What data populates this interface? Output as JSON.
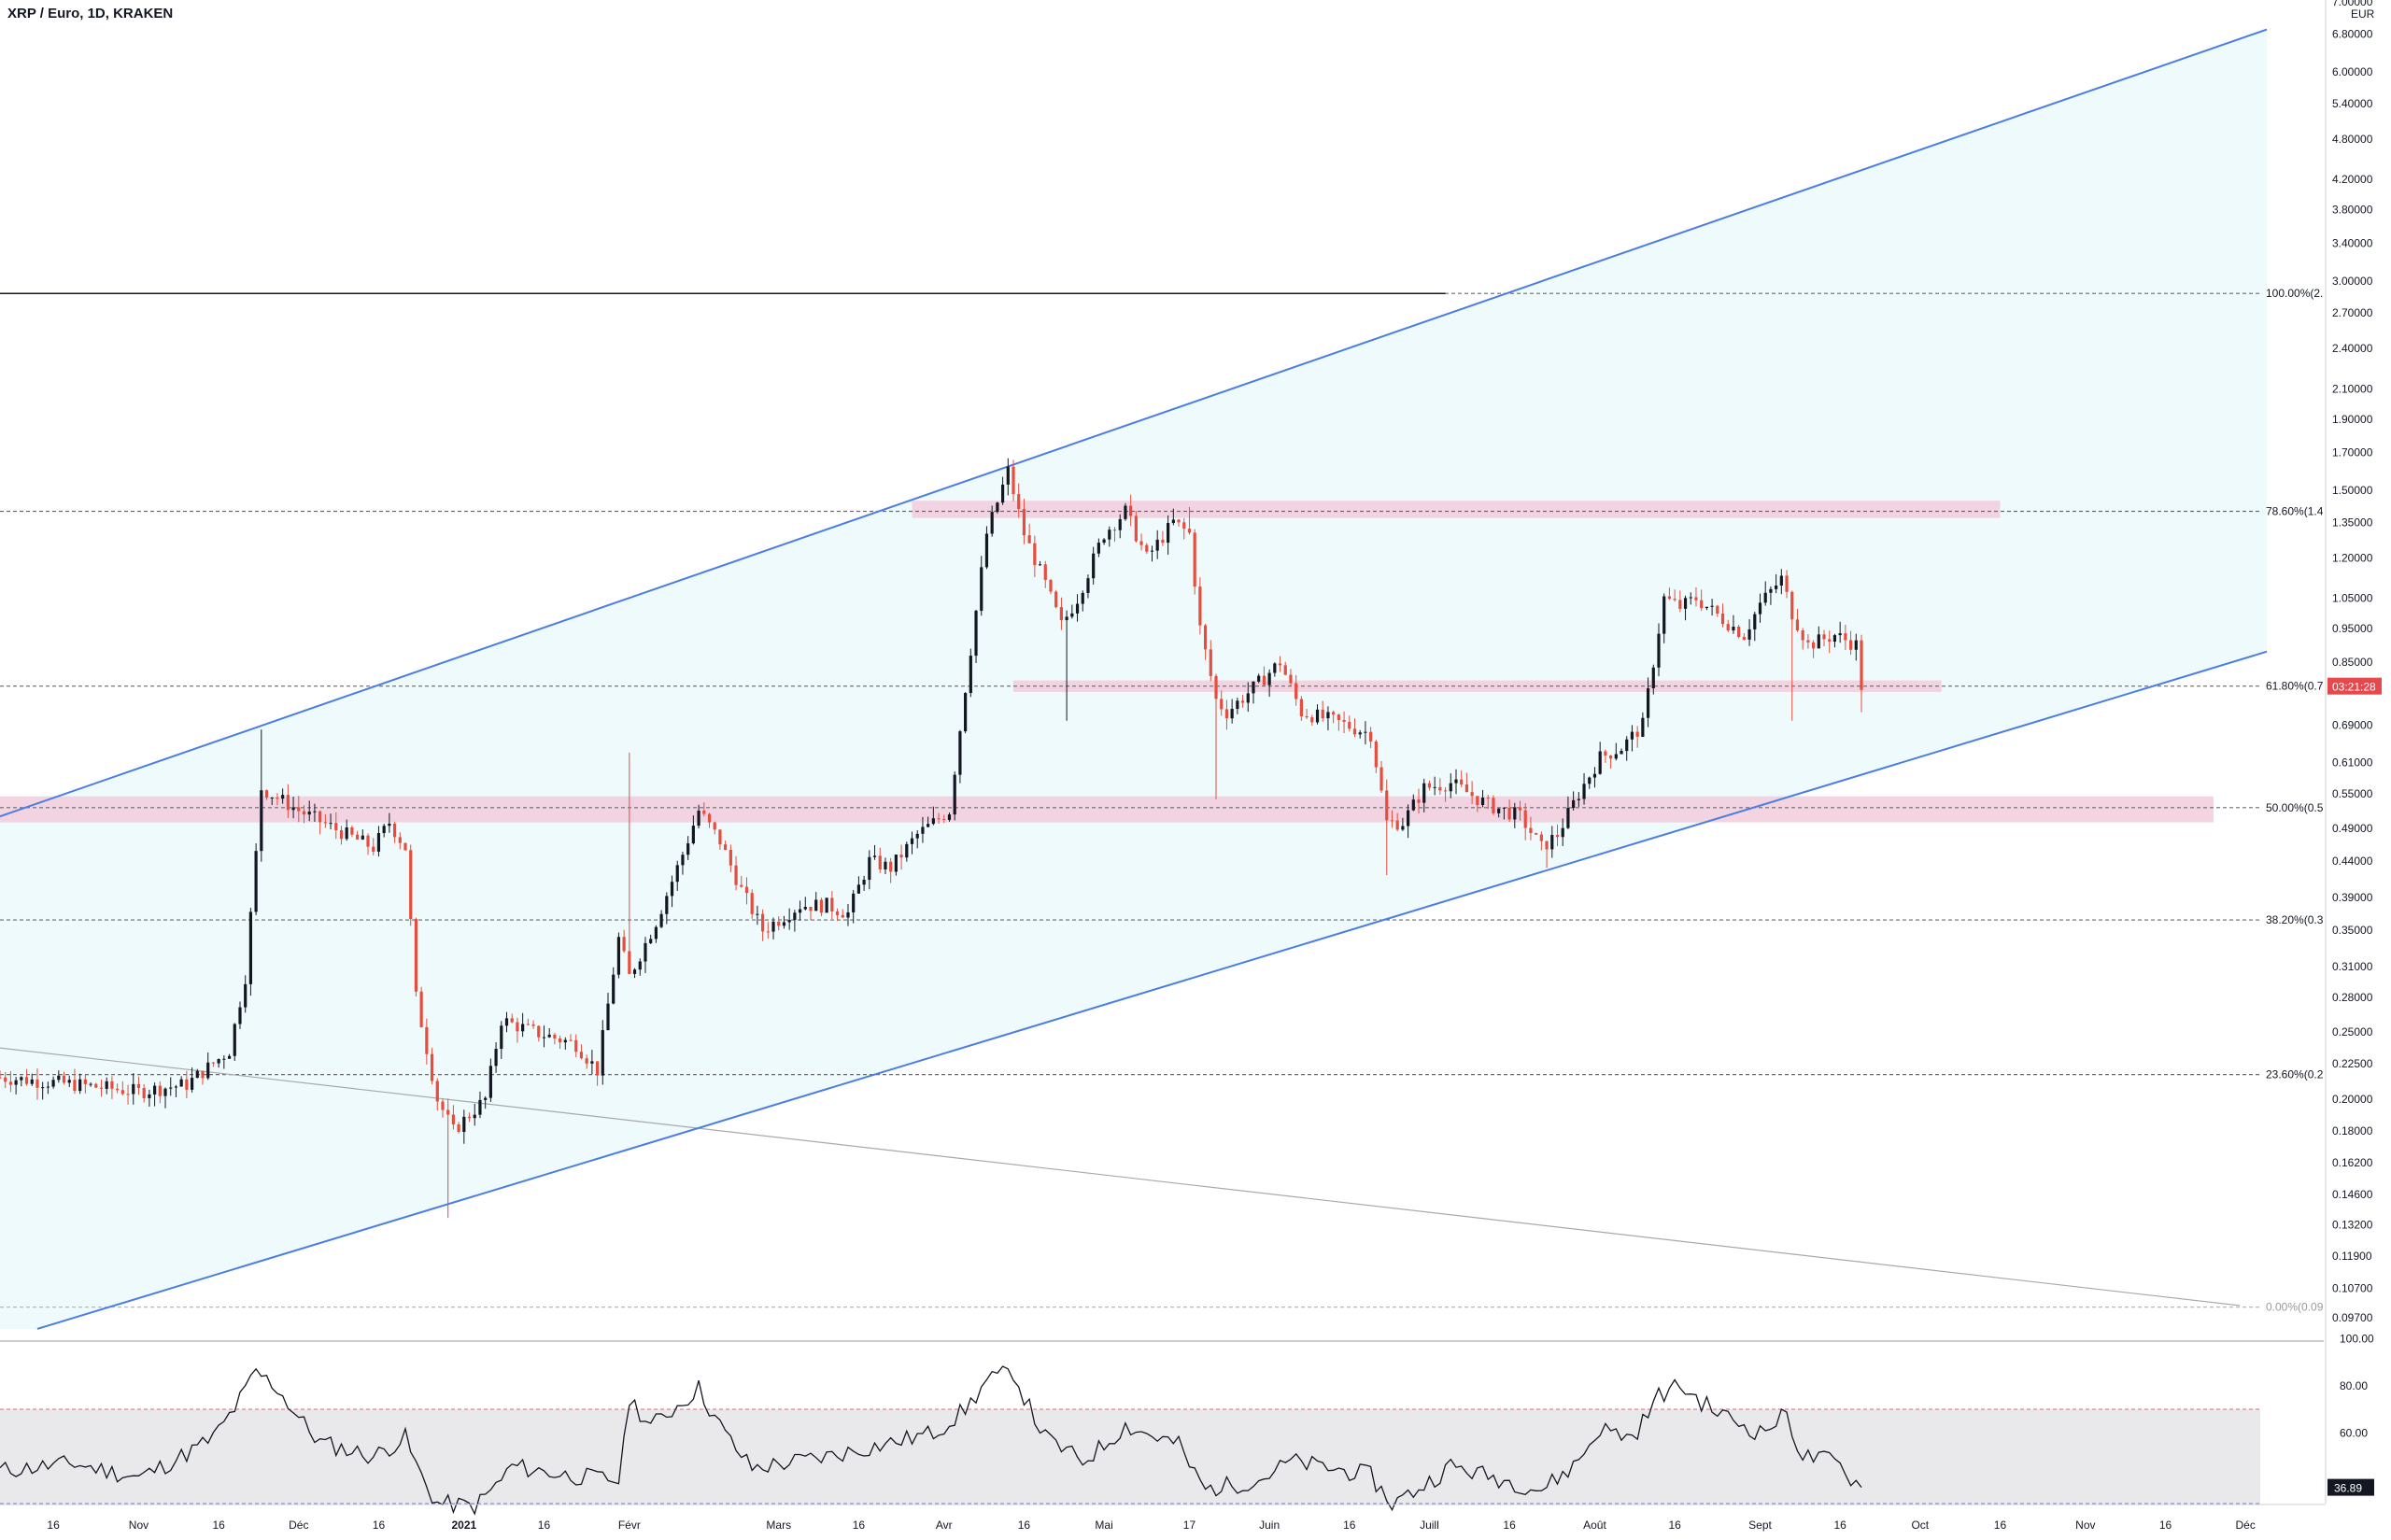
{
  "header": {
    "title": "XRP / Euro, 1D, KRAKEN"
  },
  "colors": {
    "up": "#131722",
    "down": "#e74c3c",
    "channel": "#4a7ee3",
    "channel_fill": "#eefafb",
    "zone": "#f2c6d8",
    "grid_dash": "#6b6b6b",
    "rsi_band": "#e9e9ec",
    "badge": "#e5484d",
    "rsi_badge": "#131722"
  },
  "chart_data": [
    {
      "type": "candlestick",
      "title": "XRP / Euro, 1D, KRAKEN",
      "yscale": "log",
      "currency_label": "EUR",
      "y_ticks": [
        "7.00000",
        "6.80000",
        "6.00000",
        "5.40000",
        "4.80000",
        "4.20000",
        "3.80000",
        "3.40000",
        "3.00000",
        "2.70000",
        "2.40000",
        "2.10000",
        "1.90000",
        "1.70000",
        "1.50000",
        "1.35000",
        "1.20000",
        "1.05000",
        "0.95000",
        "0.85000",
        "0.69000",
        "0.61000",
        "0.55000",
        "0.49000",
        "0.44000",
        "0.39000",
        "0.35000",
        "0.31000",
        "0.28000",
        "0.25000",
        "0.22500",
        "0.20000",
        "0.18000",
        "0.16200",
        "0.14600",
        "0.13200",
        "0.11900",
        "0.10700",
        "0.09700"
      ],
      "x_ticks": [
        "16",
        "Nov",
        "16",
        "Déc",
        "16",
        "2021",
        "16",
        "Févr",
        "Mars",
        "16",
        "Avr",
        "16",
        "Mai",
        "17",
        "Juin",
        "16",
        "Juill",
        "16",
        "Août",
        "16",
        "Sept",
        "16",
        "Oct",
        "16",
        "Nov",
        "16",
        "Déc"
      ],
      "fib_levels": [
        {
          "label": "100.00%(2.",
          "price": 2.88
        },
        {
          "label": "78.60%(1.4",
          "price": 1.4
        },
        {
          "label": "61.80%(0.7",
          "price": 0.785
        },
        {
          "label": "50.00%(0.5",
          "price": 0.525
        },
        {
          "label": "38.20%(0.3",
          "price": 0.362
        },
        {
          "label": "23.60%(0.2",
          "price": 0.217
        },
        {
          "label": "0.00%(0.09",
          "price": 0.1005
        }
      ],
      "current_price_badge": "03:21:28",
      "current_price": 0.785,
      "zones": [
        {
          "from_date": "2021-03-26",
          "to_date": "2021-10-16",
          "low": 1.37,
          "high": 1.45
        },
        {
          "from_date": "2021-04-14",
          "to_date": "2021-10-05",
          "low": 0.77,
          "high": 0.8
        },
        {
          "from_date": "2020-10-06",
          "to_date": "2021-11-25",
          "low": 0.5,
          "high": 0.545
        }
      ],
      "channel": {
        "upper": [
          {
            "date": "2020-10-06",
            "price": 0.51
          },
          {
            "date": "2021-12-05",
            "price": 6.9
          }
        ],
        "lower": [
          {
            "date": "2020-10-13",
            "price": 0.0935
          },
          {
            "date": "2021-12-05",
            "price": 0.88
          }
        ]
      },
      "downtrend_line": [
        {
          "date": "2020-10-06",
          "price": 0.237
        },
        {
          "date": "2021-11-30",
          "price": 0.101
        }
      ],
      "resistance_line": {
        "from_date": "2020-10-06",
        "to_date": "2021-07-04",
        "price": 2.88
      },
      "anchors": [
        [
          "2020-10-06",
          0.215
        ],
        [
          "2020-10-20",
          0.21
        ],
        [
          "2020-11-01",
          0.205
        ],
        [
          "2020-11-10",
          0.21
        ],
        [
          "2020-11-18",
          0.235
        ],
        [
          "2020-11-21",
          0.3
        ],
        [
          "2020-11-23",
          0.45
        ],
        [
          "2020-11-24",
          0.56
        ],
        [
          "2020-12-01",
          0.52
        ],
        [
          "2020-12-10",
          0.48
        ],
        [
          "2020-12-15",
          0.46
        ],
        [
          "2020-12-18",
          0.5
        ],
        [
          "2020-12-21",
          0.46
        ],
        [
          "2020-12-23",
          0.28
        ],
        [
          "2020-12-27",
          0.2
        ],
        [
          "2020-12-30",
          0.18
        ],
        [
          "2021-01-02",
          0.19
        ],
        [
          "2021-01-05",
          0.2
        ],
        [
          "2021-01-08",
          0.26
        ],
        [
          "2021-01-14",
          0.25
        ],
        [
          "2021-01-22",
          0.24
        ],
        [
          "2021-01-26",
          0.22
        ],
        [
          "2021-01-30",
          0.34
        ],
        [
          "2021-02-01",
          0.3
        ],
        [
          "2021-02-06",
          0.36
        ],
        [
          "2021-02-11",
          0.45
        ],
        [
          "2021-02-14",
          0.52
        ],
        [
          "2021-02-18",
          0.47
        ],
        [
          "2021-02-22",
          0.4
        ],
        [
          "2021-02-26",
          0.35
        ],
        [
          "2021-03-05",
          0.38
        ],
        [
          "2021-03-10",
          0.38
        ],
        [
          "2021-03-14",
          0.37
        ],
        [
          "2021-03-18",
          0.44
        ],
        [
          "2021-03-22",
          0.43
        ],
        [
          "2021-03-27",
          0.48
        ],
        [
          "2021-04-02",
          0.52
        ],
        [
          "2021-04-05",
          0.78
        ],
        [
          "2021-04-09",
          1.3
        ],
        [
          "2021-04-13",
          1.6
        ],
        [
          "2021-04-16",
          1.3
        ],
        [
          "2021-04-20",
          1.1
        ],
        [
          "2021-04-23",
          0.96
        ],
        [
          "2021-04-26",
          1.05
        ],
        [
          "2021-05-01",
          1.3
        ],
        [
          "2021-05-05",
          1.4
        ],
        [
          "2021-05-09",
          1.2
        ],
        [
          "2021-05-14",
          1.35
        ],
        [
          "2021-05-17",
          1.3
        ],
        [
          "2021-05-19",
          0.95
        ],
        [
          "2021-05-22",
          0.75
        ],
        [
          "2021-05-24",
          0.72
        ],
        [
          "2021-05-29",
          0.78
        ],
        [
          "2021-06-03",
          0.85
        ],
        [
          "2021-06-07",
          0.72
        ],
        [
          "2021-06-13",
          0.7
        ],
        [
          "2021-06-20",
          0.67
        ],
        [
          "2021-06-23",
          0.5
        ],
        [
          "2021-06-26",
          0.5
        ],
        [
          "2021-06-30",
          0.56
        ],
        [
          "2021-07-05",
          0.57
        ],
        [
          "2021-07-12",
          0.53
        ],
        [
          "2021-07-18",
          0.51
        ],
        [
          "2021-07-22",
          0.46
        ],
        [
          "2021-07-25",
          0.48
        ],
        [
          "2021-07-29",
          0.55
        ],
        [
          "2021-08-02",
          0.62
        ],
        [
          "2021-08-06",
          0.64
        ],
        [
          "2021-08-10",
          0.69
        ],
        [
          "2021-08-12",
          0.85
        ],
        [
          "2021-08-14",
          1.05
        ],
        [
          "2021-08-17",
          1.02
        ],
        [
          "2021-08-20",
          1.05
        ],
        [
          "2021-08-25",
          0.98
        ],
        [
          "2021-08-29",
          0.93
        ],
        [
          "2021-09-01",
          1.03
        ],
        [
          "2021-09-05",
          1.12
        ],
        [
          "2021-09-07",
          1.0
        ],
        [
          "2021-09-10",
          0.9
        ],
        [
          "2021-09-15",
          0.93
        ],
        [
          "2021-09-19",
          0.9
        ],
        [
          "2021-09-20",
          0.785
        ]
      ],
      "spikes": [
        [
          "2020-11-24",
          0.68
        ],
        [
          "2020-12-29",
          0.135
        ],
        [
          "2021-02-01",
          0.63
        ],
        [
          "2021-02-14",
          0.53
        ],
        [
          "2021-04-14",
          1.66
        ],
        [
          "2021-05-06",
          1.48
        ],
        [
          "2021-05-17",
          1.42
        ],
        [
          "2021-05-22",
          0.54
        ],
        [
          "2021-06-23",
          0.42
        ],
        [
          "2021-07-23",
          0.43
        ],
        [
          "2021-09-07",
          0.7
        ],
        [
          "2021-09-20",
          0.72
        ],
        [
          "2021-04-24",
          0.7
        ]
      ]
    },
    {
      "type": "line",
      "title": "",
      "y_ticks": [
        "100.00",
        "80.00",
        "60.00"
      ],
      "band": [
        30,
        70
      ],
      "current_value_badge": "36.89",
      "anchors": [
        [
          "2020-10-06",
          44
        ],
        [
          "2020-10-20",
          47
        ],
        [
          "2020-11-01",
          41
        ],
        [
          "2020-11-15",
          58
        ],
        [
          "2020-11-23",
          86
        ],
        [
          "2020-11-27",
          79
        ],
        [
          "2020-12-05",
          56
        ],
        [
          "2020-12-15",
          50
        ],
        [
          "2020-12-21",
          58
        ],
        [
          "2020-12-27",
          30
        ],
        [
          "2021-01-03",
          29
        ],
        [
          "2021-01-10",
          46
        ],
        [
          "2021-01-20",
          42
        ],
        [
          "2021-01-30",
          40
        ],
        [
          "2021-02-01",
          75
        ],
        [
          "2021-02-05",
          63
        ],
        [
          "2021-02-14",
          79
        ],
        [
          "2021-02-24",
          45
        ],
        [
          "2021-03-10",
          50
        ],
        [
          "2021-03-30",
          60
        ],
        [
          "2021-04-05",
          70
        ],
        [
          "2021-04-09",
          82
        ],
        [
          "2021-04-14",
          86
        ],
        [
          "2021-04-20",
          58
        ],
        [
          "2021-04-27",
          48
        ],
        [
          "2021-05-05",
          63
        ],
        [
          "2021-05-15",
          55
        ],
        [
          "2021-05-20",
          36
        ],
        [
          "2021-05-30",
          40
        ],
        [
          "2021-06-05",
          48
        ],
        [
          "2021-06-20",
          42
        ],
        [
          "2021-06-24",
          30
        ],
        [
          "2021-07-05",
          46
        ],
        [
          "2021-07-15",
          40
        ],
        [
          "2021-07-22",
          36
        ],
        [
          "2021-07-28",
          46
        ],
        [
          "2021-08-02",
          62
        ],
        [
          "2021-08-08",
          58
        ],
        [
          "2021-08-13",
          76
        ],
        [
          "2021-08-17",
          80
        ],
        [
          "2021-08-23",
          70
        ],
        [
          "2021-09-01",
          60
        ],
        [
          "2021-09-06",
          68
        ],
        [
          "2021-09-09",
          50
        ],
        [
          "2021-09-15",
          48
        ],
        [
          "2021-09-20",
          36.89
        ]
      ]
    }
  ]
}
